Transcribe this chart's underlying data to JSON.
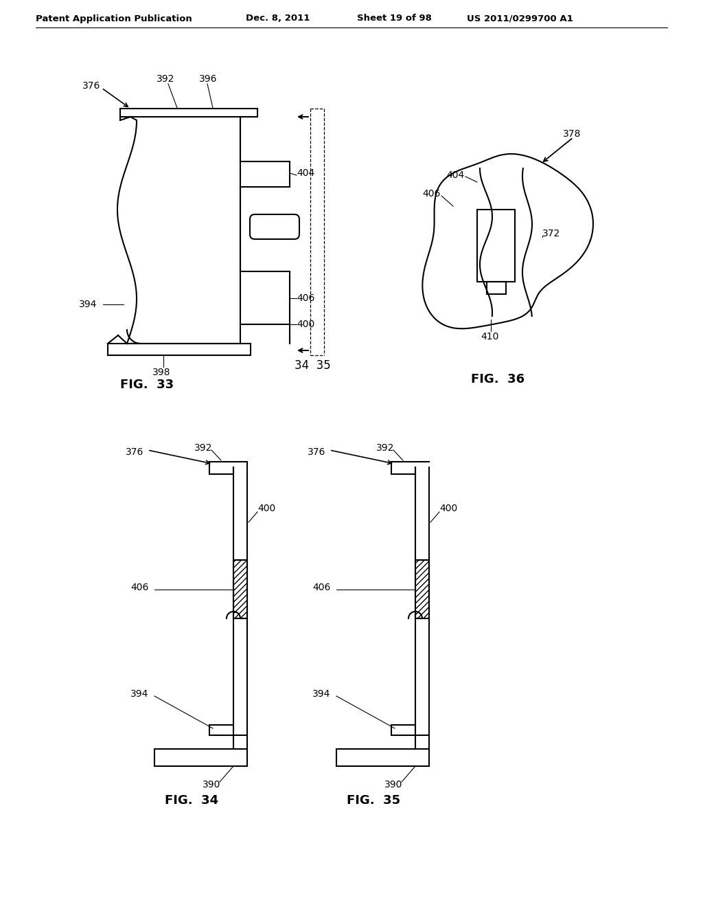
{
  "title_left": "Patent Application Publication",
  "title_mid": "Dec. 8, 2011",
  "title_right_sheet": "Sheet 19 of 98",
  "title_right_patent": "US 2011/0299700 A1",
  "fig33_label": "FIG.  33",
  "fig34_label": "FIG.  34",
  "fig35_label": "FIG.  35",
  "fig36_label": "FIG.  36",
  "background_color": "#ffffff",
  "line_color": "#000000",
  "label_fontsize": 10,
  "fig_label_fontsize": 13,
  "header_fontsize": 9.5
}
